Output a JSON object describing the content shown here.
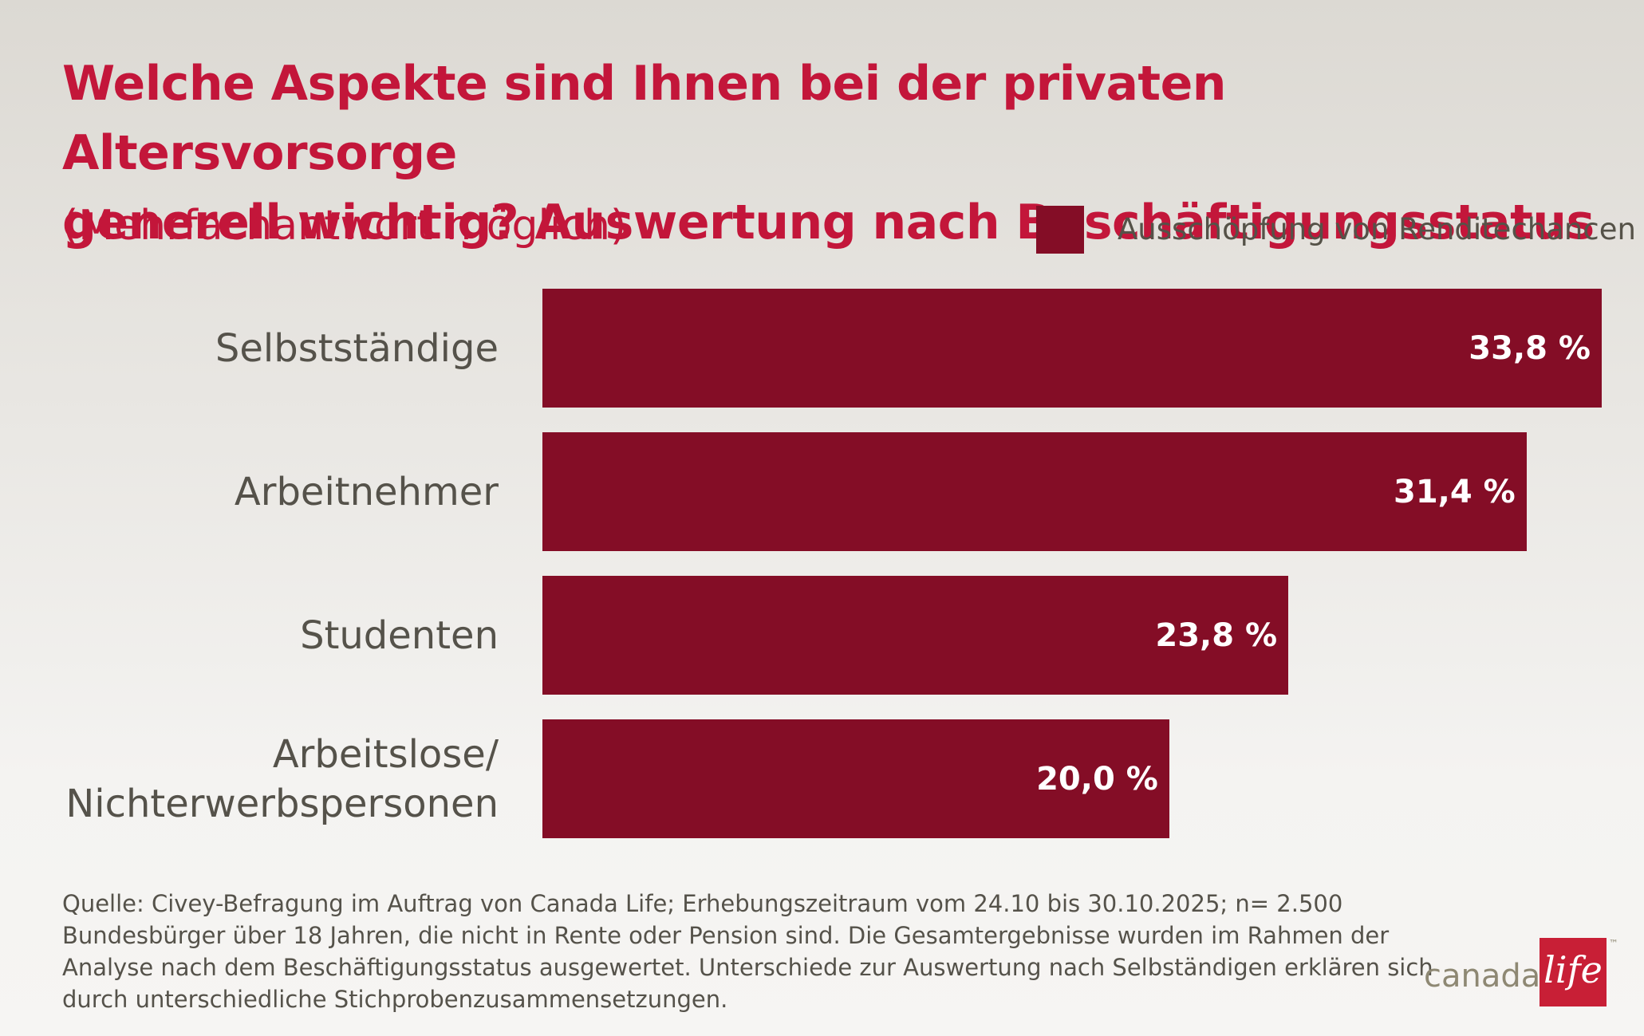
{
  "chart_data": {
    "type": "bar",
    "orientation": "horizontal",
    "title": "Welche Aspekte sind Ihnen bei der privaten Altersvorsorge generell wichtig? Auswertung nach Beschäftigungsstatus",
    "title_lines": [
      "Welche Aspekte sind Ihnen bei der privaten Altersvorsorge",
      "generell wichtig? Auswertung nach Beschäftigungsstatus"
    ],
    "subtitle": "(Mehrfachantwort möglich)",
    "categories": [
      "Selbstständige",
      "Arbeitnehmer",
      "Studenten",
      "Arbeitslose/ Nichterwerbspersonen"
    ],
    "category_lines": [
      [
        "Selbstständige"
      ],
      [
        "Arbeitnehmer"
      ],
      [
        "Studenten"
      ],
      [
        "Arbeitslose/",
        "Nichterwerbspersonen"
      ]
    ],
    "series": [
      {
        "name": "Ausschöpfung von Renditechancen",
        "values": [
          33.8,
          31.4,
          23.8,
          20.0
        ],
        "data_labels": [
          "33,8 %",
          "31,4 %",
          "23,8 %",
          "20,0 %"
        ]
      }
    ],
    "xlim": [
      0,
      33.8
    ],
    "xlabel": "",
    "ylabel": "",
    "grid": false,
    "legend_position": "top-right",
    "bar_color": "#840d26",
    "title_color": "#c3163a"
  },
  "source": {
    "lines": [
      "Quelle: Civey-Befragung im Auftrag von Canada Life; Erhebungszeitraum vom 24.10 bis 30.10.2025; n= 2.500",
      "Bundesbürger über 18 Jahren, die nicht in Rente oder Pension sind. Die Gesamtergebnisse wurden im Rahmen der",
      "Analyse nach dem Beschäftigungsstatus ausgewertet. Unterschiede zur Auswertung nach Selbständigen erklären sich",
      "durch unterschiedliche Stichprobenzusammensetzungen."
    ]
  },
  "logo": {
    "text": "canada",
    "box_text": "life",
    "trademark": "™",
    "colors": {
      "text": "#8e8873",
      "box": "#c81f36"
    }
  }
}
